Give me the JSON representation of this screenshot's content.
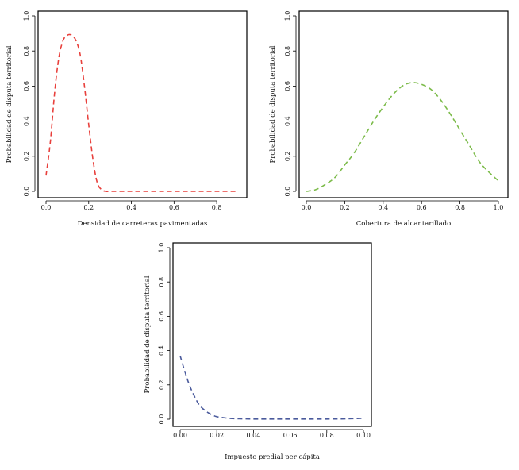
{
  "chart_data": [
    {
      "type": "line",
      "xlabel": "Densidad de carreteras pavimentadas",
      "ylabel": "Probabilidad de disputa territorial",
      "xlim": [
        0,
        0.9
      ],
      "ylim": [
        0,
        1.0
      ],
      "xticks": [
        "0.0",
        "0.2",
        "0.4",
        "0.6",
        "0.8"
      ],
      "xtick_values": [
        0,
        0.2,
        0.4,
        0.6,
        0.8
      ],
      "yticks": [
        "0.0",
        "0.2",
        "0.4",
        "0.6",
        "0.8",
        "1.0"
      ],
      "ytick_values": [
        0,
        0.2,
        0.4,
        0.6,
        0.8,
        1.0
      ],
      "color": "#e8403c",
      "x": [
        0.0,
        0.02,
        0.04,
        0.06,
        0.08,
        0.1,
        0.12,
        0.14,
        0.16,
        0.18,
        0.2,
        0.22,
        0.24,
        0.26,
        0.28,
        0.3,
        0.4,
        0.5,
        0.6,
        0.7,
        0.8,
        0.9
      ],
      "y": [
        0.09,
        0.28,
        0.56,
        0.76,
        0.86,
        0.89,
        0.89,
        0.86,
        0.78,
        0.6,
        0.38,
        0.18,
        0.05,
        0.01,
        0.0,
        0.0,
        0.0,
        0.0,
        0.0,
        0.0,
        0.0,
        0.0
      ]
    },
    {
      "type": "line",
      "xlabel": "Cobertura de alcantarillado",
      "ylabel": "Probabilidad de disputa territorial",
      "xlim": [
        0,
        1.0
      ],
      "ylim": [
        0,
        1.0
      ],
      "xticks": [
        "0.0",
        "0.2",
        "0.4",
        "0.6",
        "0.8",
        "1.0"
      ],
      "xtick_values": [
        0,
        0.2,
        0.4,
        0.6,
        0.8,
        1.0
      ],
      "yticks": [
        "0.0",
        "0.2",
        "0.4",
        "0.6",
        "0.8",
        "1.0"
      ],
      "ytick_values": [
        0,
        0.2,
        0.4,
        0.6,
        0.8,
        1.0
      ],
      "color": "#7cbb4a",
      "x": [
        0.0,
        0.05,
        0.1,
        0.15,
        0.2,
        0.25,
        0.3,
        0.35,
        0.4,
        0.45,
        0.5,
        0.55,
        0.6,
        0.65,
        0.7,
        0.75,
        0.8,
        0.85,
        0.9,
        0.95,
        1.0
      ],
      "y": [
        0.0,
        0.01,
        0.04,
        0.08,
        0.15,
        0.22,
        0.31,
        0.4,
        0.48,
        0.55,
        0.6,
        0.62,
        0.61,
        0.58,
        0.52,
        0.44,
        0.35,
        0.26,
        0.17,
        0.11,
        0.06
      ]
    },
    {
      "type": "line",
      "xlabel": "Impuesto predial per cápita",
      "ylabel": "Probabilidad de disputa territorial",
      "xlim": [
        0,
        0.1
      ],
      "ylim": [
        0,
        1.0
      ],
      "xticks": [
        "0.00",
        "0.02",
        "0.04",
        "0.06",
        "0.08",
        "0.10"
      ],
      "xtick_values": [
        0,
        0.02,
        0.04,
        0.06,
        0.08,
        0.1
      ],
      "yticks": [
        "0.0",
        "0.2",
        "0.4",
        "0.6",
        "0.8",
        "1.0"
      ],
      "ytick_values": [
        0,
        0.2,
        0.4,
        0.6,
        0.8,
        1.0
      ],
      "color": "#4a5a9c",
      "x": [
        0.0,
        0.0025,
        0.005,
        0.0075,
        0.01,
        0.0125,
        0.015,
        0.0175,
        0.02,
        0.025,
        0.03,
        0.035,
        0.04,
        0.05,
        0.06,
        0.07,
        0.08,
        0.09,
        0.1
      ],
      "y": [
        0.37,
        0.28,
        0.2,
        0.14,
        0.09,
        0.06,
        0.04,
        0.025,
        0.015,
        0.007,
        0.003,
        0.002,
        0.001,
        0.001,
        0.001,
        0.001,
        0.001,
        0.002,
        0.005
      ]
    }
  ]
}
